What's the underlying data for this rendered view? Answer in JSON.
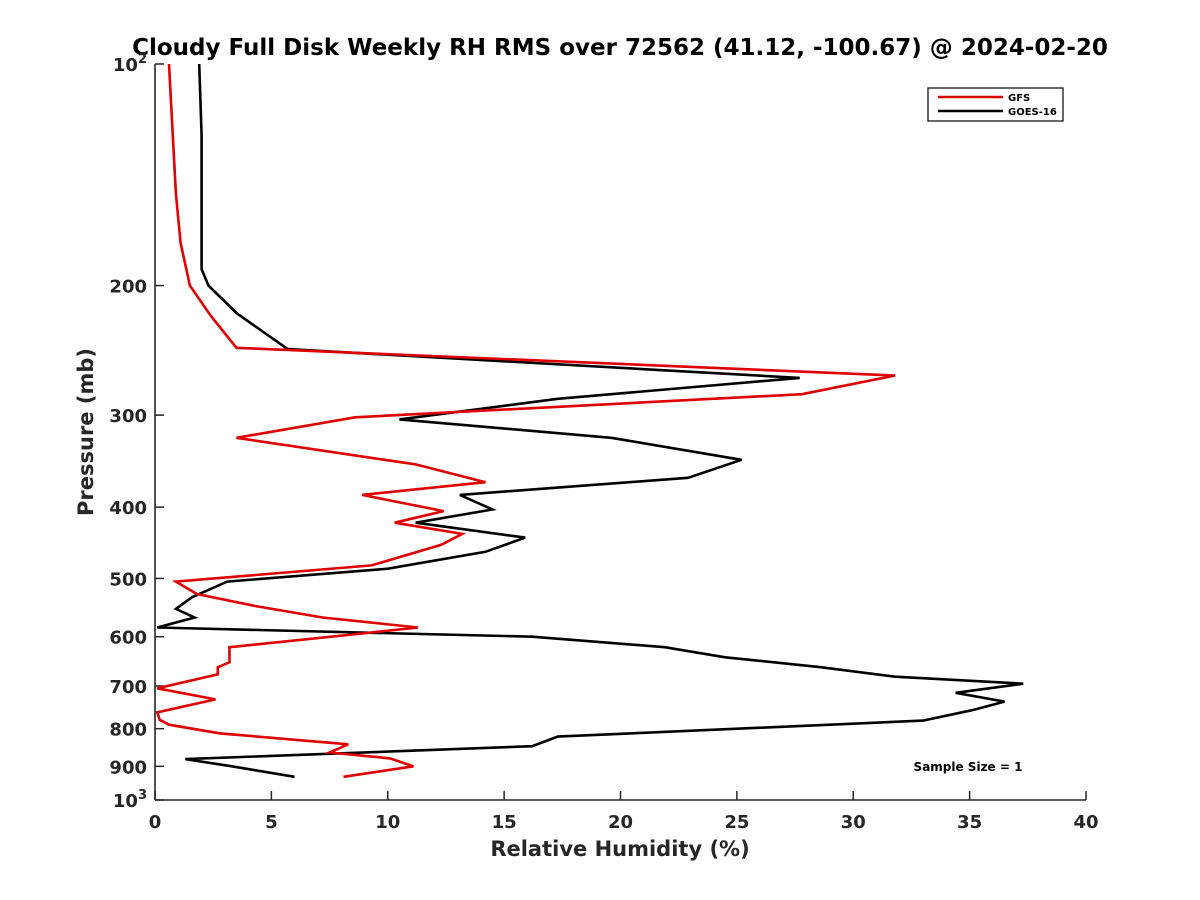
{
  "chart_data": {
    "type": "line",
    "title": "Cloudy Full Disk Weekly RH RMS over 72562 (41.12, -100.67) @ 2024-02-20",
    "xlabel": "Relative Humidity (%)",
    "ylabel": "Pressure (mb)",
    "xlim": [
      0,
      40
    ],
    "ylim": [
      1000,
      100
    ],
    "y_scale": "log",
    "y_reversed": true,
    "grid": false,
    "legend_position": "top-right",
    "annotation": "Sample Size = 1",
    "x_ticks": [
      "0",
      "5",
      "10",
      "15",
      "20",
      "25",
      "30",
      "35",
      "40"
    ],
    "y_ticks": [
      {
        "value": 100,
        "label": "10",
        "sup": "2"
      },
      {
        "value": 200,
        "label": "200",
        "sup": ""
      },
      {
        "value": 300,
        "label": "300",
        "sup": ""
      },
      {
        "value": 400,
        "label": "400",
        "sup": ""
      },
      {
        "value": 500,
        "label": "500",
        "sup": ""
      },
      {
        "value": 600,
        "label": "600",
        "sup": ""
      },
      {
        "value": 700,
        "label": "700",
        "sup": ""
      },
      {
        "value": 800,
        "label": "800",
        "sup": ""
      },
      {
        "value": 900,
        "label": "900",
        "sup": ""
      },
      {
        "value": 1000,
        "label": "10",
        "sup": "3"
      }
    ],
    "series": [
      {
        "name": "GFS",
        "color": "#e00000",
        "points": [
          [
            0.6,
            100
          ],
          [
            0.9,
            150
          ],
          [
            1.1,
            175
          ],
          [
            1.5,
            200
          ],
          [
            2.4,
            220
          ],
          [
            3.5,
            243
          ],
          [
            31.8,
            265
          ],
          [
            27.8,
            281
          ],
          [
            8.6,
            302
          ],
          [
            3.5,
            322
          ],
          [
            11.2,
            350
          ],
          [
            14.2,
            370
          ],
          [
            8.9,
            385
          ],
          [
            12.4,
            405
          ],
          [
            10.3,
            420
          ],
          [
            13.2,
            435
          ],
          [
            12.3,
            450
          ],
          [
            9.3,
            480
          ],
          [
            0.9,
            505
          ],
          [
            1.8,
            525
          ],
          [
            4.3,
            545
          ],
          [
            7.2,
            565
          ],
          [
            11.3,
            583
          ],
          [
            8.7,
            595
          ],
          [
            3.2,
            620
          ],
          [
            3.2,
            650
          ],
          [
            2.7,
            660
          ],
          [
            2.7,
            675
          ],
          [
            0.1,
            705
          ],
          [
            2.6,
            730
          ],
          [
            0.1,
            760
          ],
          [
            0.2,
            778
          ],
          [
            0.6,
            790
          ],
          [
            2.8,
            812
          ],
          [
            8.3,
            840
          ],
          [
            7.5,
            862
          ],
          [
            10.1,
            878
          ],
          [
            11.1,
            900
          ],
          [
            8.1,
            930
          ]
        ]
      },
      {
        "name": "GOES-16",
        "color": "#000000",
        "points": [
          [
            1.9,
            100
          ],
          [
            2.0,
            125
          ],
          [
            2.0,
            150
          ],
          [
            2.0,
            175
          ],
          [
            2.0,
            190
          ],
          [
            2.3,
            200
          ],
          [
            3.5,
            218
          ],
          [
            5.7,
            244
          ],
          [
            27.7,
            267
          ],
          [
            17.3,
            285
          ],
          [
            10.5,
            304
          ],
          [
            19.6,
            322
          ],
          [
            25.2,
            345
          ],
          [
            22.9,
            365
          ],
          [
            13.1,
            385
          ],
          [
            14.5,
            403
          ],
          [
            11.2,
            420
          ],
          [
            15.9,
            440
          ],
          [
            14.2,
            460
          ],
          [
            10.0,
            485
          ],
          [
            3.1,
            505
          ],
          [
            1.6,
            530
          ],
          [
            0.9,
            550
          ],
          [
            1.7,
            565
          ],
          [
            0.1,
            583
          ],
          [
            16.2,
            600
          ],
          [
            21.9,
            620
          ],
          [
            24.5,
            640
          ],
          [
            28.6,
            660
          ],
          [
            31.8,
            680
          ],
          [
            37.3,
            695
          ],
          [
            34.4,
            715
          ],
          [
            36.5,
            735
          ],
          [
            35.1,
            755
          ],
          [
            33.0,
            780
          ],
          [
            17.3,
            820
          ],
          [
            16.2,
            845
          ],
          [
            1.3,
            880
          ],
          [
            3.3,
            900
          ],
          [
            6.0,
            930
          ]
        ]
      }
    ]
  }
}
